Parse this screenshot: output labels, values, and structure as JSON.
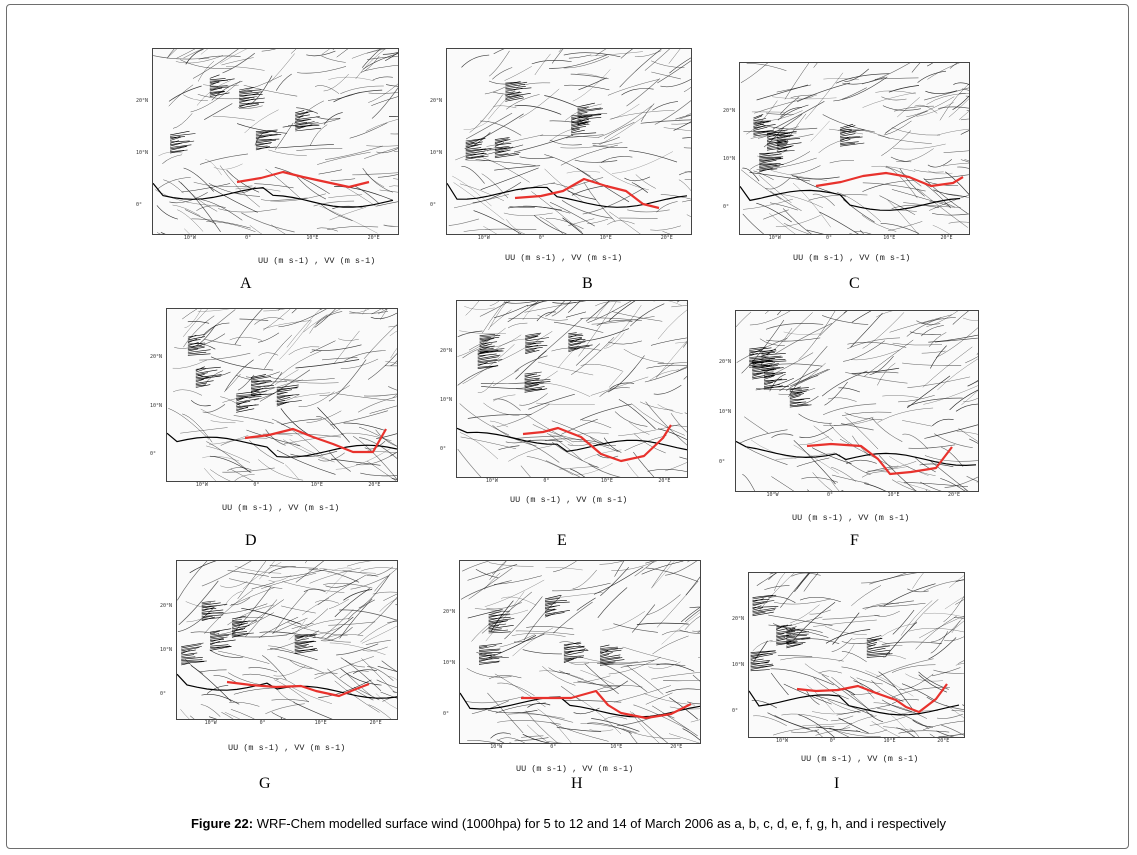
{
  "figure": {
    "label": "Figure 22:",
    "text": " WRF-Chem modelled surface wind (1000hpa) for 5 to 12 and 14 of March 2006 as a, b, c, d, e, f, g, h, and i respectively"
  },
  "units_label": "UU (m s-1) , VV (m s-1)",
  "lat_ticks": [
    "20°N",
    "10°N",
    "0°"
  ],
  "lon_ticks": [
    "10°W",
    "0°",
    "10°E",
    "20°E"
  ],
  "trough_color": "#e8322d",
  "panels": [
    {
      "letter": "A"
    },
    {
      "letter": "B"
    },
    {
      "letter": "C"
    },
    {
      "letter": "D"
    },
    {
      "letter": "E"
    },
    {
      "letter": "F"
    },
    {
      "letter": "G"
    },
    {
      "letter": "H"
    },
    {
      "letter": "I"
    }
  ]
}
